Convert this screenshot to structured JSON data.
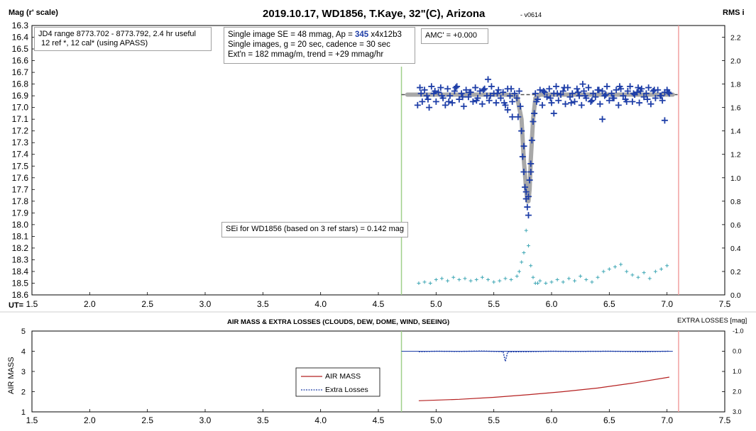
{
  "main": {
    "title": "2019.10.17, WD1856, T.Kaye, 32\"(C), Arizona",
    "version": "- v0614",
    "left_axis_label": "Mag (r' scale)",
    "right_axis_label": "RMS i",
    "x_axis_prefix": "UT=",
    "info_jd": "JD4 range 8773.702 - 8773.792, 2.4 hr useful",
    "info_ref": "12 ref *, 12 cal* (using APASS)",
    "info_se_prefix": "Single image SE = 48 mmag, Ap = ",
    "info_ap": "345",
    "info_ap_suffix": " x4x12b3",
    "info_single": "Single images, g = 20 sec, cadence = 30 sec",
    "info_ext": "Ext'n = 182 mmag/m, trend = +29 mmag/hr",
    "amc": "AMC' = +0.000",
    "sei": "SEi for WD1856 (based on 3 ref stars) = 0.142 mag"
  },
  "lower": {
    "title": "AIR MASS & EXTRA LOSSES (CLOUDS, DEW, DOME, WIND, SEEING)",
    "right_label": "EXTRA LOSSES [mag]",
    "left_label": "AIR MASS",
    "legend_airmass": "AIR MASS",
    "legend_losses": "Extra Losses"
  },
  "colors": {
    "points": "#1f3fa8",
    "model": "#a8a8a8",
    "rms": "#3fa7b5",
    "airmass": "#b52020",
    "losses": "#1f3fa8",
    "start_line": "#9fd08a",
    "end_line": "#f2a0a0"
  },
  "chart_data": [
    {
      "type": "scatter",
      "title": "2019.10.17, WD1856, T.Kaye, 32\"(C), Arizona",
      "xlabel": "UT=",
      "ylabel": "Mag (r' scale)",
      "y2label": "RMS i",
      "xlim": [
        1.5,
        7.5
      ],
      "ylim": [
        18.6,
        16.3
      ],
      "y2lim": [
        0.0,
        2.3
      ],
      "x_ticks": [
        "1.5",
        "2.0",
        "2.5",
        "3.0",
        "3.5",
        "4.0",
        "4.5",
        "5.0",
        "5.5",
        "6.0",
        "6.5",
        "7.0",
        "7.5"
      ],
      "y_ticks": [
        "16.3",
        "16.4",
        "16.5",
        "16.6",
        "16.7",
        "16.8",
        "16.9",
        "17.0",
        "17.1",
        "17.2",
        "17.3",
        "17.4",
        "17.5",
        "17.6",
        "17.7",
        "17.8",
        "17.9",
        "18.0",
        "18.1",
        "18.2",
        "18.3",
        "18.4",
        "18.5",
        "18.6"
      ],
      "y2_ticks": [
        "0.0",
        "0.2",
        "0.4",
        "0.6",
        "0.8",
        "1.0",
        "1.2",
        "1.4",
        "1.6",
        "1.8",
        "2.0",
        "2.2"
      ],
      "vlines": {
        "start": 4.7,
        "end": 7.1
      },
      "baseline": {
        "x": [
          4.7,
          7.1
        ],
        "y": 16.89
      },
      "series": [
        {
          "name": "WD1856",
          "style": "cross",
          "x": [
            4.84,
            4.86,
            4.88,
            4.9,
            4.92,
            4.94,
            4.96,
            4.98,
            5.0,
            5.02,
            5.04,
            5.06,
            5.08,
            5.1,
            5.12,
            5.14,
            5.16,
            5.18,
            5.2,
            5.22,
            5.24,
            5.26,
            5.28,
            5.3,
            5.32,
            5.34,
            5.36,
            5.38,
            5.4,
            5.42,
            5.44,
            5.46,
            5.48,
            5.5,
            5.52,
            5.54,
            5.56,
            5.58,
            5.6,
            5.62,
            5.64,
            5.66,
            5.68,
            5.7,
            5.72,
            5.74,
            5.76,
            5.78,
            5.8,
            5.82,
            5.84,
            5.86,
            5.88,
            5.9,
            5.92,
            5.94,
            5.96,
            5.98,
            6.0,
            6.02,
            6.04,
            6.06,
            6.08,
            6.1,
            6.12,
            6.14,
            6.16,
            6.18,
            6.2,
            6.22,
            6.24,
            6.26,
            6.28,
            6.3,
            6.32,
            6.34,
            6.36,
            6.38,
            6.4,
            6.42,
            6.44,
            6.46,
            6.48,
            6.5,
            6.52,
            6.54,
            6.56,
            6.58,
            6.6,
            6.62,
            6.64,
            6.66,
            6.68,
            6.7,
            6.72,
            6.74,
            6.76,
            6.78,
            6.8,
            6.82,
            6.84,
            6.86,
            6.88,
            6.9,
            6.92,
            6.94,
            6.96,
            6.98,
            7.0,
            7.02,
            4.87,
            4.93,
            4.99,
            5.05,
            5.11,
            5.17,
            5.23,
            5.29,
            5.35,
            5.41,
            5.47,
            5.53,
            5.59,
            5.65,
            5.71,
            5.75,
            5.77,
            5.79,
            5.81,
            5.83,
            5.87,
            5.93,
            5.99,
            6.05,
            6.11,
            6.17,
            6.23,
            6.29,
            6.35,
            6.41,
            6.47,
            6.53,
            6.59,
            6.65,
            6.71,
            6.77,
            6.83,
            6.89,
            6.95,
            7.01,
            5.45,
            5.62,
            5.66,
            5.73,
            5.76,
            5.8,
            5.78,
            5.82,
            5.85,
            6.02,
            6.27,
            6.44,
            6.75,
            6.98
          ],
          "y": [
            16.98,
            16.83,
            16.95,
            16.85,
            16.9,
            17.0,
            16.82,
            16.88,
            16.95,
            16.87,
            16.83,
            16.92,
            16.98,
            16.84,
            16.9,
            16.96,
            16.86,
            16.82,
            16.93,
            16.88,
            16.99,
            16.85,
            16.91,
            16.87,
            16.95,
            16.83,
            16.92,
            16.86,
            16.97,
            16.84,
            16.9,
            16.94,
            16.82,
            16.88,
            16.96,
            16.85,
            16.92,
            16.87,
            16.98,
            16.84,
            16.9,
            16.95,
            16.88,
            16.92,
            16.86,
            17.2,
            17.55,
            17.72,
            17.76,
            17.55,
            17.12,
            16.88,
            16.93,
            16.85,
            16.98,
            16.87,
            16.91,
            16.84,
            16.96,
            16.88,
            16.82,
            16.94,
            16.89,
            16.86,
            16.97,
            16.83,
            16.91,
            16.88,
            16.95,
            16.84,
            16.9,
            16.98,
            16.86,
            16.92,
            16.83,
            16.95,
            16.88,
            16.91,
            16.85,
            16.97,
            16.86,
            16.9,
            16.82,
            16.94,
            16.88,
            16.92,
            16.85,
            16.98,
            16.84,
            16.9,
            16.93,
            16.86,
            16.82,
            16.95,
            16.89,
            16.87,
            16.96,
            16.84,
            16.91,
            16.88,
            16.83,
            16.97,
            16.86,
            16.92,
            16.85,
            16.9,
            16.94,
            16.87,
            16.85,
            16.88,
            16.88,
            16.93,
            16.86,
            16.9,
            16.95,
            16.83,
            16.91,
            16.87,
            16.94,
            16.85,
            16.9,
            16.88,
            16.96,
            16.84,
            17.08,
            17.42,
            17.68,
            17.85,
            17.62,
            17.28,
            16.95,
            16.86,
            16.92,
            16.88,
            16.83,
            16.96,
            16.87,
            16.9,
            16.94,
            16.85,
            16.89,
            16.92,
            16.82,
            16.95,
            16.88,
            16.86,
            16.93,
            16.85,
            16.9,
            16.87,
            16.76,
            17.02,
            17.08,
            16.99,
            17.33,
            17.92,
            17.78,
            17.48,
            17.05,
            17.05,
            16.8,
            17.1,
            16.83,
            17.11
          ]
        },
        {
          "name": "Model",
          "style": "thick-line",
          "x": [
            4.75,
            5.6,
            5.7,
            5.74,
            5.76,
            5.78,
            5.79,
            5.8,
            5.81,
            5.82,
            5.84,
            5.86,
            5.9,
            7.05
          ],
          "y": [
            16.89,
            16.89,
            16.9,
            17.1,
            17.45,
            17.7,
            17.8,
            17.8,
            17.7,
            17.45,
            17.1,
            16.92,
            16.89,
            16.89
          ]
        },
        {
          "name": "RMS",
          "style": "small-cross",
          "axis": "right",
          "x": [
            4.85,
            4.9,
            4.95,
            5.0,
            5.05,
            5.1,
            5.15,
            5.2,
            5.25,
            5.3,
            5.35,
            5.4,
            5.45,
            5.5,
            5.55,
            5.6,
            5.65,
            5.7,
            5.72,
            5.74,
            5.76,
            5.78,
            5.8,
            5.82,
            5.84,
            5.86,
            5.88,
            5.9,
            5.95,
            6.0,
            6.05,
            6.1,
            6.15,
            6.2,
            6.25,
            6.3,
            6.35,
            6.4,
            6.45,
            6.5,
            6.55,
            6.6,
            6.65,
            6.7,
            6.75,
            6.8,
            6.85,
            6.9,
            6.95,
            7.0
          ],
          "y": [
            0.1,
            0.11,
            0.1,
            0.13,
            0.14,
            0.12,
            0.15,
            0.13,
            0.14,
            0.12,
            0.13,
            0.15,
            0.13,
            0.11,
            0.12,
            0.14,
            0.13,
            0.16,
            0.2,
            0.28,
            0.36,
            0.55,
            0.42,
            0.25,
            0.15,
            0.1,
            0.1,
            0.12,
            0.1,
            0.11,
            0.13,
            0.11,
            0.14,
            0.12,
            0.16,
            0.13,
            0.11,
            0.15,
            0.2,
            0.22,
            0.24,
            0.26,
            0.2,
            0.17,
            0.15,
            0.19,
            0.14,
            0.2,
            0.22,
            0.25
          ]
        }
      ]
    },
    {
      "type": "line",
      "title": "AIR MASS & EXTRA LOSSES (CLOUDS, DEW, DOME, WIND, SEEING)",
      "ylabel": "AIR MASS",
      "y2label": "EXTRA LOSSES [mag]",
      "xlim": [
        1.5,
        7.5
      ],
      "ylim": [
        1,
        5
      ],
      "y2lim": [
        3.0,
        -1.0
      ],
      "x_ticks": [
        "1.5",
        "2.0",
        "2.5",
        "3.0",
        "3.5",
        "4.0",
        "4.5",
        "5.0",
        "5.5",
        "6.0",
        "6.5",
        "7.0",
        "7.5"
      ],
      "y_ticks": [
        "1",
        "2",
        "3",
        "4",
        "5"
      ],
      "y2_ticks": [
        "-1.0",
        "0.0",
        "1.0",
        "2.0",
        "3.0"
      ],
      "series": [
        {
          "name": "AIR MASS",
          "x": [
            4.85,
            5.2,
            5.5,
            5.8,
            6.1,
            6.4,
            6.7,
            7.02
          ],
          "y": [
            1.55,
            1.62,
            1.72,
            1.85,
            2.0,
            2.18,
            2.42,
            2.72
          ]
        },
        {
          "name": "Extra Losses",
          "x": [
            4.85,
            5.0,
            5.2,
            5.4,
            5.58,
            5.6,
            5.62,
            5.8,
            6.0,
            6.2,
            6.5,
            6.8,
            7.02
          ],
          "y": [
            0.02,
            0.0,
            0.01,
            -0.01,
            0.02,
            0.5,
            0.03,
            0.02,
            0.0,
            0.01,
            0.0,
            0.02,
            0.0
          ]
        }
      ]
    }
  ]
}
